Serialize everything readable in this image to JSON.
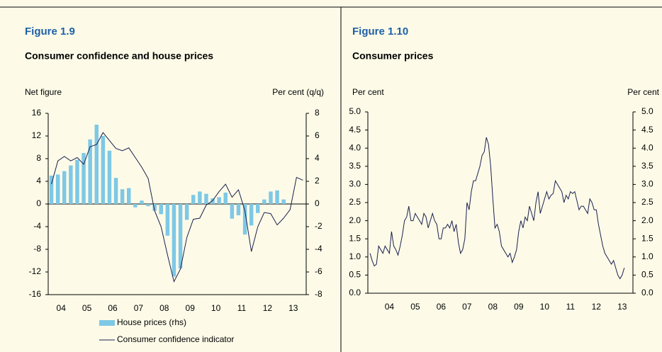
{
  "chart_data": [
    {
      "type": "combo",
      "title": "Figure 1.9",
      "subtitle": "Consumer confidence and house prices",
      "ylabel": "Net figure",
      "y2label": "Per cent (q/q)",
      "x": [
        2004.125,
        2004.375,
        2004.625,
        2004.875,
        2005.125,
        2005.375,
        2005.625,
        2005.875,
        2006.125,
        2006.375,
        2006.625,
        2006.875,
        2007.125,
        2007.375,
        2007.625,
        2007.875,
        2008.125,
        2008.375,
        2008.625,
        2008.875,
        2009.125,
        2009.375,
        2009.625,
        2009.875,
        2010.125,
        2010.375,
        2010.625,
        2010.875,
        2011.125,
        2011.375,
        2011.625,
        2011.875,
        2012.125,
        2012.375,
        2012.625,
        2012.875,
        2013.125,
        2013.375,
        2013.625,
        2013.875
      ],
      "xlim": [
        2004,
        2014
      ],
      "xticks": [
        {
          "value": 2004.5,
          "label": "04"
        },
        {
          "value": 2005.5,
          "label": "05"
        },
        {
          "value": 2006.5,
          "label": "06"
        },
        {
          "value": 2007.5,
          "label": "07"
        },
        {
          "value": 2008.5,
          "label": "08"
        },
        {
          "value": 2009.5,
          "label": "09"
        },
        {
          "value": 2010.5,
          "label": "10"
        },
        {
          "value": 2011.5,
          "label": "11"
        },
        {
          "value": 2012.5,
          "label": "12"
        },
        {
          "value": 2013.5,
          "label": "13"
        }
      ],
      "ylim": [
        -16,
        16
      ],
      "yticks": [
        16,
        12,
        8,
        4,
        0,
        -4,
        -8,
        -12,
        -16
      ],
      "y2lim": [
        -8,
        8
      ],
      "y2ticks": [
        8,
        6,
        4,
        2,
        0,
        -2,
        -4,
        -6,
        -8
      ],
      "series": [
        {
          "name": "House prices (rhs)",
          "type": "bar",
          "axis": "y2",
          "color": "#7ec8e6",
          "values": [
            2.5,
            2.6,
            2.9,
            3.4,
            3.9,
            4.5,
            5.7,
            7.0,
            6.0,
            4.7,
            2.3,
            1.3,
            1.4,
            -0.3,
            0.3,
            -0.2,
            -0.6,
            -0.9,
            -2.8,
            -6.4,
            -5.7,
            -1.4,
            0.8,
            1.1,
            0.9,
            0.5,
            0.6,
            1.0,
            -1.3,
            -1.0,
            -2.7,
            -1.9,
            -0.8,
            0.4,
            1.1,
            1.2,
            0.4,
            null,
            null,
            null
          ]
        },
        {
          "name": "Consumer confidence indicator",
          "type": "line",
          "color": "#1b1f4f",
          "values": [
            3.5,
            7.6,
            8.4,
            7.6,
            8.2,
            7.0,
            10.1,
            10.5,
            12.6,
            11.2,
            9.8,
            9.4,
            9.9,
            8.2,
            6.5,
            4.5,
            -1.2,
            -4.0,
            -9.0,
            -13.7,
            -11.5,
            -5.9,
            -2.7,
            -2.5,
            -0.2,
            0.6,
            2.2,
            3.5,
            1.2,
            2.5,
            -1.2,
            -8.4,
            -4.0,
            -1.5,
            -1.7,
            -3.7,
            -2.5,
            -1.0,
            4.7,
            4.2
          ]
        }
      ]
    },
    {
      "type": "line",
      "title": "Figure 1.10",
      "subtitle": "Consumer prices",
      "ylabel": "Per cent",
      "y2label": "Per cent",
      "x": [
        2003.75,
        2003.833,
        2003.917,
        2004,
        2004.083,
        2004.167,
        2004.25,
        2004.333,
        2004.417,
        2004.5,
        2004.583,
        2004.667,
        2004.75,
        2004.833,
        2004.917,
        2005,
        2005.083,
        2005.167,
        2005.25,
        2005.333,
        2005.417,
        2005.5,
        2005.583,
        2005.667,
        2005.75,
        2005.833,
        2005.917,
        2006,
        2006.083,
        2006.167,
        2006.25,
        2006.333,
        2006.417,
        2006.5,
        2006.583,
        2006.667,
        2006.75,
        2006.833,
        2006.917,
        2007,
        2007.083,
        2007.167,
        2007.25,
        2007.333,
        2007.417,
        2007.5,
        2007.583,
        2007.667,
        2007.75,
        2007.833,
        2007.917,
        2008,
        2008.083,
        2008.167,
        2008.25,
        2008.333,
        2008.417,
        2008.5,
        2008.583,
        2008.667,
        2008.75,
        2008.833,
        2008.917,
        2009,
        2009.083,
        2009.167,
        2009.25,
        2009.333,
        2009.417,
        2009.5,
        2009.583,
        2009.667,
        2009.75,
        2009.833,
        2009.917,
        2010,
        2010.083,
        2010.167,
        2010.25,
        2010.333,
        2010.417,
        2010.5,
        2010.583,
        2010.667,
        2010.75,
        2010.833,
        2010.917,
        2011,
        2011.083,
        2011.167,
        2011.25,
        2011.333,
        2011.417,
        2011.5,
        2011.583,
        2011.667,
        2011.75,
        2011.833,
        2011.917,
        2012,
        2012.083,
        2012.167,
        2012.25,
        2012.333,
        2012.417,
        2012.5,
        2012.583,
        2012.667,
        2012.75,
        2012.833,
        2012.917,
        2013,
        2013.083,
        2013.167,
        2013.25,
        2013.333,
        2013.417,
        2013.5,
        2013.583
      ],
      "xlim": [
        2003.667,
        2013.917
      ],
      "xticks": [
        {
          "value": 2004.5,
          "label": "04"
        },
        {
          "value": 2005.5,
          "label": "05"
        },
        {
          "value": 2006.5,
          "label": "06"
        },
        {
          "value": 2007.5,
          "label": "07"
        },
        {
          "value": 2008.5,
          "label": "08"
        },
        {
          "value": 2009.5,
          "label": "09"
        },
        {
          "value": 2010.5,
          "label": "10"
        },
        {
          "value": 2011.5,
          "label": "11"
        },
        {
          "value": 2012.5,
          "label": "12"
        },
        {
          "value": 2013.5,
          "label": "13"
        }
      ],
      "ylim": [
        0,
        5
      ],
      "yticks": [
        {
          "value": 5,
          "label": "5.0"
        },
        {
          "value": 4.5,
          "label": "4.5"
        },
        {
          "value": 4,
          "label": "4.0"
        },
        {
          "value": 3.5,
          "label": "3.5"
        },
        {
          "value": 3,
          "label": "3.0"
        },
        {
          "value": 2.5,
          "label": "2.5"
        },
        {
          "value": 2,
          "label": "2.0"
        },
        {
          "value": 1.5,
          "label": "1.5"
        },
        {
          "value": 1,
          "label": "1.0"
        },
        {
          "value": 0.5,
          "label": "0.5"
        },
        {
          "value": 0,
          "label": "0.0"
        }
      ],
      "y2lim": [
        0,
        5
      ],
      "y2ticks": [
        {
          "value": 5,
          "label": "5.0"
        },
        {
          "value": 4.5,
          "label": "4.5"
        },
        {
          "value": 4,
          "label": "4.0"
        },
        {
          "value": 3.5,
          "label": "3.5"
        },
        {
          "value": 3,
          "label": "3.0"
        },
        {
          "value": 2.5,
          "label": "2.5"
        },
        {
          "value": 2,
          "label": "2.0"
        },
        {
          "value": 1.5,
          "label": "1.5"
        },
        {
          "value": 1,
          "label": "1.0"
        },
        {
          "value": 0.5,
          "label": "0.5"
        },
        {
          "value": 0,
          "label": "0.0"
        }
      ],
      "series": [
        {
          "type": "line",
          "color": "#1b1f4f",
          "values": [
            1.1,
            0.9,
            0.75,
            0.8,
            1.3,
            1.2,
            1.1,
            1.3,
            1.2,
            1.1,
            1.7,
            1.3,
            1.2,
            1.05,
            1.3,
            1.6,
            2.0,
            2.1,
            2.4,
            2.0,
            2.0,
            2.2,
            2.1,
            2.0,
            1.9,
            2.2,
            2.1,
            1.8,
            2.0,
            2.2,
            2.0,
            1.9,
            1.5,
            1.5,
            1.8,
            1.8,
            1.9,
            1.8,
            2.0,
            1.7,
            1.9,
            1.4,
            1.1,
            1.2,
            1.5,
            2.5,
            2.3,
            2.8,
            3.1,
            3.1,
            3.3,
            3.5,
            3.8,
            3.9,
            4.3,
            4.1,
            3.5,
            2.6,
            1.8,
            1.9,
            1.7,
            1.3,
            1.2,
            1.1,
            1.0,
            1.1,
            0.85,
            1.0,
            1.2,
            1.7,
            2.0,
            1.8,
            2.1,
            2.0,
            2.4,
            2.2,
            2.0,
            2.5,
            2.8,
            2.2,
            2.4,
            2.6,
            2.8,
            2.6,
            2.7,
            2.75,
            3.1,
            3.0,
            2.9,
            2.8,
            2.5,
            2.7,
            2.6,
            2.8,
            2.75,
            2.8,
            2.55,
            2.3,
            2.4,
            2.4,
            2.3,
            2.2,
            2.6,
            2.5,
            2.3,
            2.3,
            1.9,
            1.6,
            1.3,
            1.1,
            1.0,
            0.9,
            0.8,
            0.9,
            0.7,
            0.5,
            0.4,
            0.5,
            0.7
          ]
        }
      ]
    }
  ]
}
